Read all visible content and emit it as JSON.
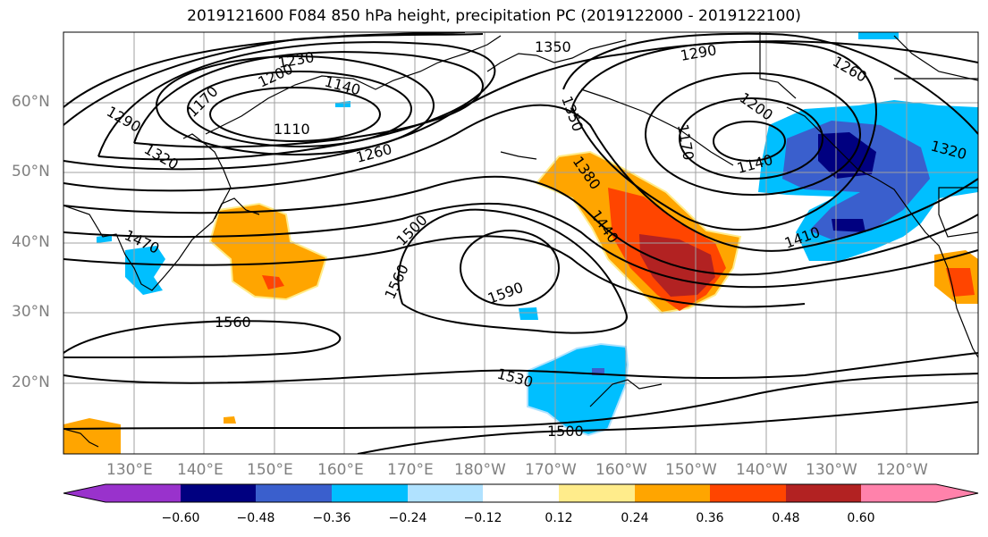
{
  "title": "2019121600 F084 850 hPa height, precipitation PC (2019122000 - 2019122100)",
  "lat_labels": [
    "60°N",
    "50°N",
    "40°N",
    "30°N",
    "20°N"
  ],
  "lon_labels": [
    "130°E",
    "140°E",
    "150°E",
    "160°E",
    "170°E",
    "180°W",
    "170°W",
    "160°W",
    "150°W",
    "140°W",
    "130°W",
    "120°W"
  ],
  "contour_labels": [
    "1350",
    "1290",
    "1260",
    "1230",
    "1200",
    "1170",
    "1140",
    "1110",
    "1290",
    "1320",
    "1260",
    "1200",
    "1170",
    "1140",
    "1350",
    "1380",
    "1440",
    "1410",
    "1320",
    "1500",
    "1560",
    "1590",
    "1560",
    "1530",
    "1500",
    "1470"
  ],
  "colorbar": {
    "ticks": [
      "−0.60",
      "−0.48",
      "−0.36",
      "−0.24",
      "−0.12",
      "0.12",
      "0.24",
      "0.36",
      "0.48",
      "0.60"
    ],
    "colors": [
      "#9932CC",
      "#000080",
      "#3A5FCD",
      "#00BFFF",
      "#B0E2FF",
      "#FFFFFF",
      "#FFEC8B",
      "#FFA500",
      "#FF4500",
      "#B22222",
      "#FF82AB"
    ]
  }
}
